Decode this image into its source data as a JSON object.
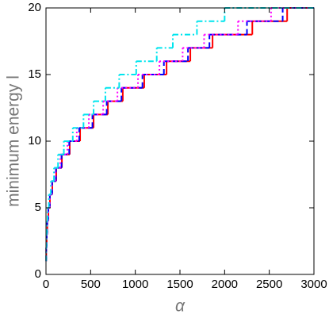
{
  "chart_data": {
    "type": "step",
    "xlabel": "α",
    "ylabel": "minimum energy l",
    "xlim": [
      0,
      3000
    ],
    "ylim": [
      0,
      20
    ],
    "xticks": [
      0,
      500,
      1000,
      1500,
      2000,
      2500,
      3000
    ],
    "yticks": [
      0,
      5,
      10,
      15,
      20
    ],
    "series": [
      {
        "color": "#ff0000",
        "dash": "solid",
        "x": [
          0,
          3,
          8,
          15,
          27,
          44,
          71,
          115,
          178,
          266,
          382,
          533,
          693,
          860,
          1100,
          1350,
          1616,
          1865,
          2310,
          2700
        ],
        "values": [
          1,
          2,
          3,
          4,
          5,
          6,
          7,
          8,
          9,
          10,
          11,
          12,
          13,
          14,
          15,
          16,
          17,
          18,
          19,
          20
        ]
      },
      {
        "color": "#0000ff",
        "dash": "dashed",
        "x": [
          0,
          3,
          8,
          14,
          26,
          43,
          69,
          112,
          174,
          260,
          372,
          520,
          680,
          845,
          1080,
          1320,
          1590,
          1830,
          2250,
          2650
        ],
        "values": [
          1,
          2,
          3,
          4,
          5,
          6,
          7,
          8,
          9,
          10,
          11,
          12,
          13,
          14,
          15,
          16,
          17,
          18,
          19,
          20
        ]
      },
      {
        "color": "#ff00ff",
        "dash": "dotted",
        "x": [
          0,
          3,
          7,
          13,
          24,
          40,
          64,
          104,
          160,
          240,
          345,
          480,
          640,
          800,
          1030,
          1270,
          1530,
          1770,
          2150,
          2520
        ],
        "values": [
          1,
          2,
          3,
          4,
          5,
          6,
          7,
          8,
          9,
          10,
          11,
          12,
          13,
          14,
          15,
          16,
          17,
          18,
          19,
          20
        ]
      },
      {
        "color": "#00e5ee",
        "dash": "dashdot",
        "x": [
          0,
          2,
          5,
          10,
          18,
          32,
          55,
          90,
          135,
          200,
          300,
          420,
          533,
          665,
          820,
          1010,
          1240,
          1420,
          1690,
          2000
        ],
        "values": [
          1,
          2,
          3,
          4,
          5,
          6,
          7,
          8,
          9,
          10,
          11,
          12,
          13,
          14,
          15,
          16,
          17,
          18,
          19,
          20
        ]
      }
    ]
  }
}
